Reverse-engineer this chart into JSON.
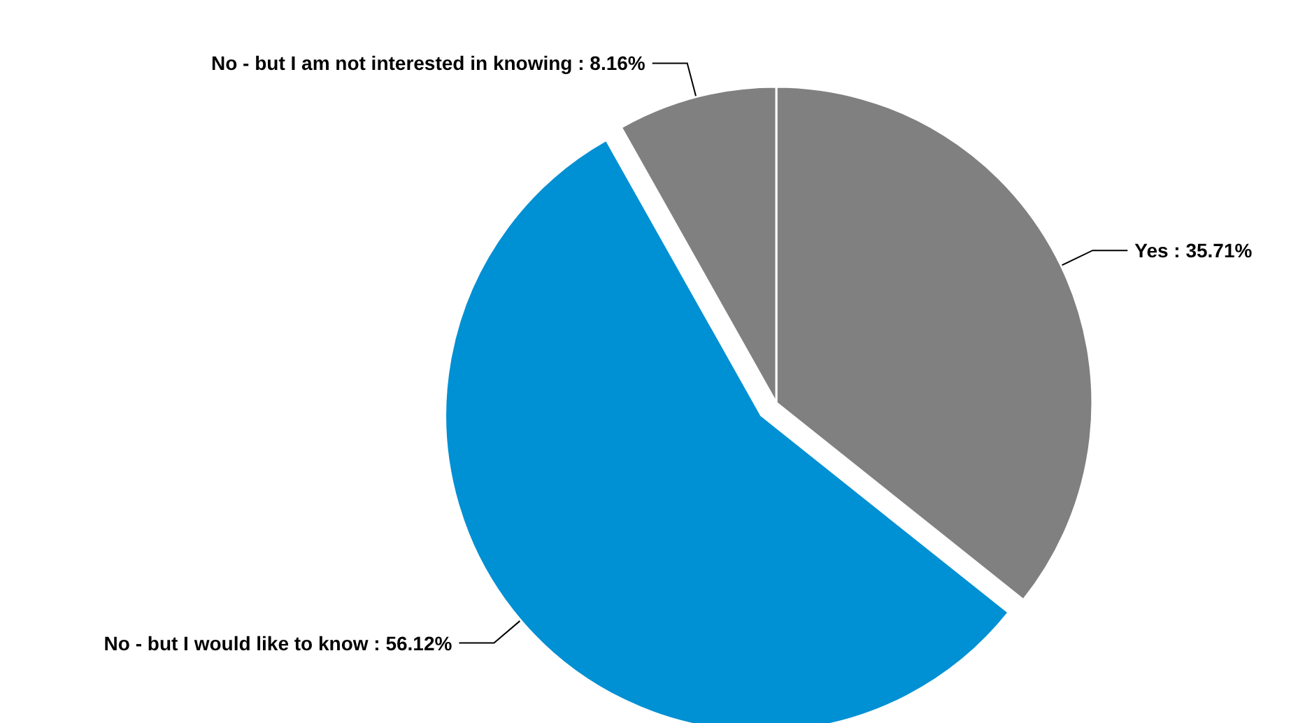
{
  "chart_data": {
    "type": "pie",
    "categories": [
      "Yes",
      "No - but I would like to know",
      "No - but I am not interested in knowing"
    ],
    "values": [
      35.71,
      56.12,
      8.16
    ],
    "colors": [
      "#808080",
      "#0090d4",
      "#808080"
    ],
    "value_labels": [
      ": 35.71%",
      ": 56.12%",
      ": 8.16%"
    ],
    "legend": false
  }
}
